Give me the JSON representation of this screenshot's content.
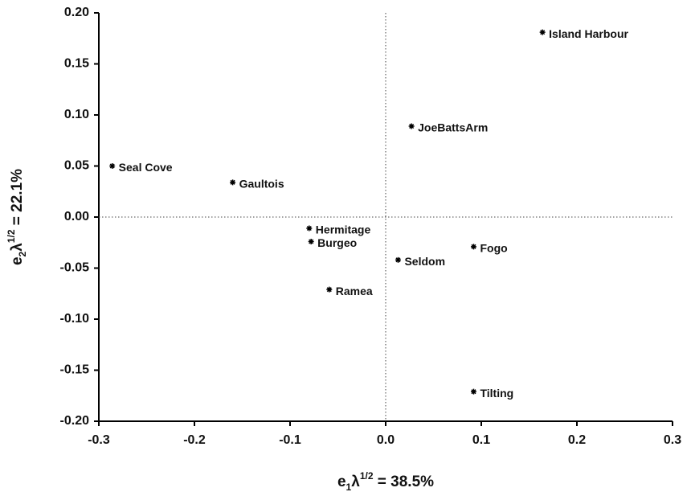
{
  "chart_data": {
    "type": "scatter",
    "x_label": [
      "e",
      "1",
      "λ",
      "1/2",
      " = 38.5%"
    ],
    "y_label": [
      "e",
      "2",
      "λ",
      "1/2",
      " = 22.1%"
    ],
    "labels": [
      "Island Harbour",
      "JoeBattsArm",
      "Seal Cove",
      "Gaultois",
      "Hermitage",
      "Burgeo",
      "Seldom",
      "Fogo",
      "Ramea",
      "Tilting"
    ],
    "x": [
      0.164,
      0.027,
      -0.286,
      -0.16,
      -0.08,
      -0.078,
      0.013,
      0.092,
      -0.059,
      0.092
    ],
    "values": [
      0.181,
      0.089,
      0.05,
      0.034,
      -0.011,
      -0.024,
      -0.042,
      -0.029,
      -0.071,
      -0.171
    ],
    "color": "#000000",
    "xlim": [
      -0.3,
      0.3
    ],
    "xticks": [
      -0.3,
      -0.2,
      -0.1,
      {
        "value": 0,
        "label": "0.0"
      },
      0.1,
      0.2,
      0.3
    ],
    "ylim": [
      -0.2,
      0.2
    ],
    "yticks": [
      {
        "value": 0.2,
        "label": "0.20"
      },
      {
        "value": 0.15,
        "label": "0.15"
      },
      {
        "value": 0.1,
        "label": "0.10"
      },
      {
        "value": 0.05,
        "label": "0.05"
      },
      {
        "value": 0,
        "label": "0.00"
      },
      {
        "value": -0.05,
        "label": "-0.05"
      },
      {
        "value": -0.1,
        "label": "-0.10"
      },
      {
        "value": -0.15,
        "label": "-0.15"
      },
      {
        "value": -0.2,
        "label": "-0.20"
      }
    ],
    "zero_lines": true
  }
}
